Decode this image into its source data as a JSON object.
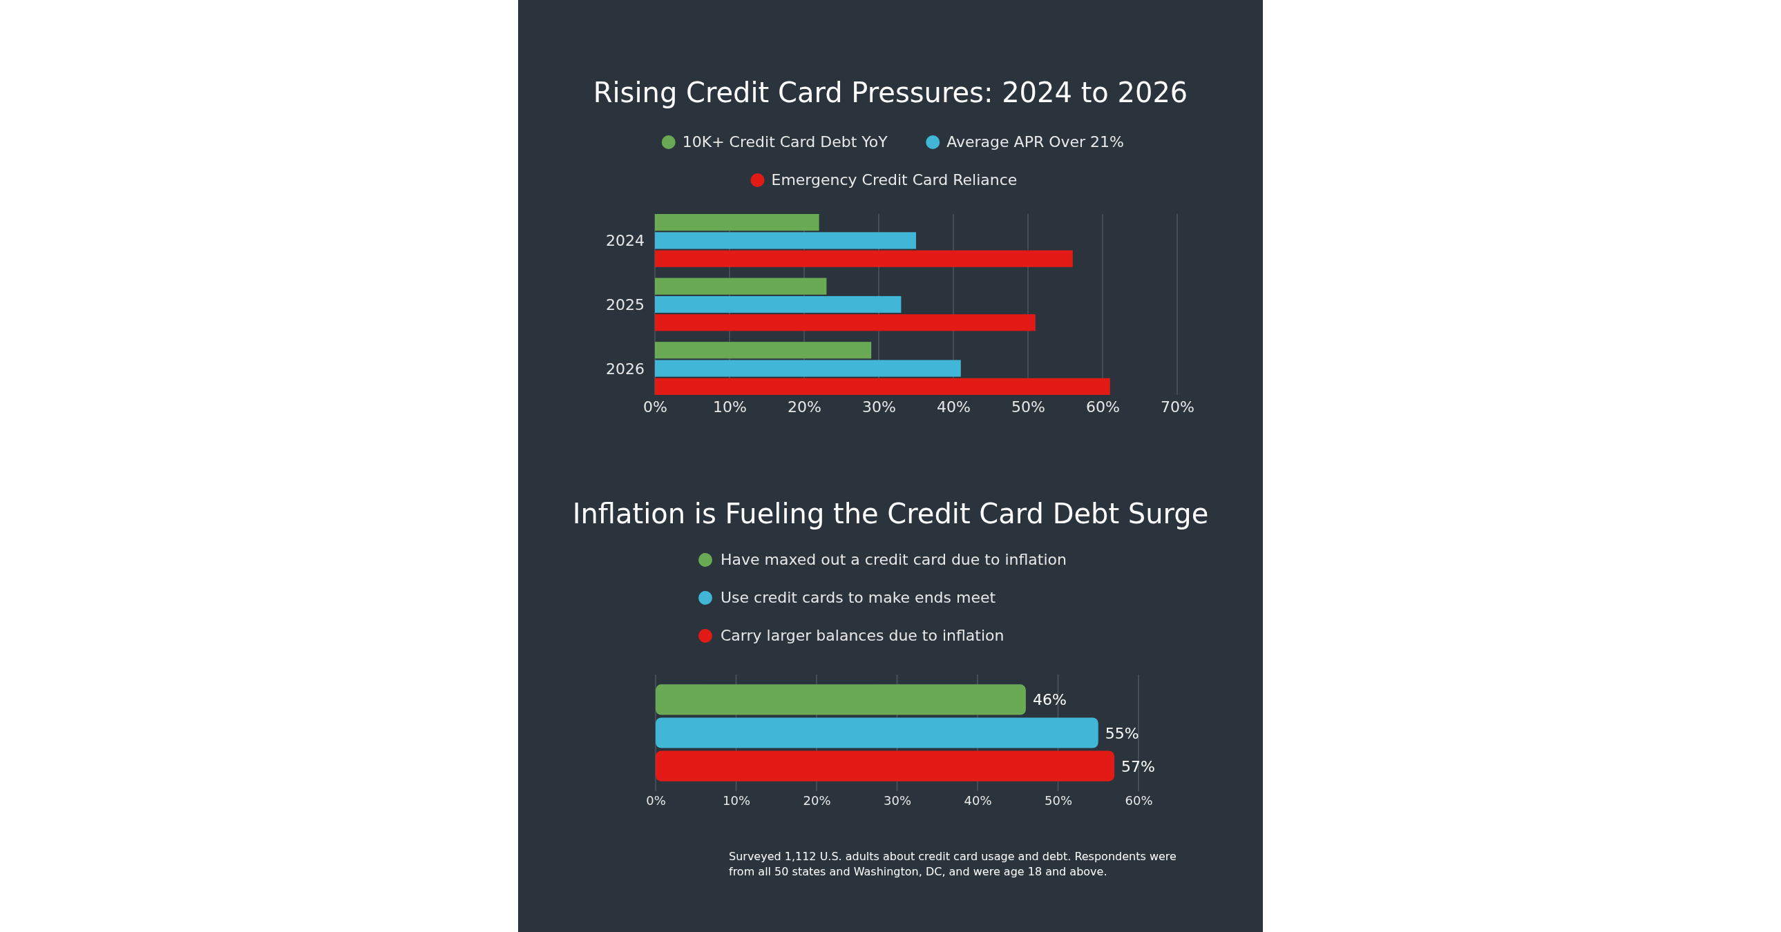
{
  "chart_data": [
    {
      "type": "bar",
      "orientation": "horizontal",
      "title": "Rising Credit Card Pressures: 2024 to 2026",
      "categories": [
        "2024",
        "2025",
        "2026"
      ],
      "series": [
        {
          "name": "10K+ Credit Card Debt YoY",
          "color": "#6aaa55",
          "values": [
            22,
            23,
            29
          ]
        },
        {
          "name": "Average APR Over 21%",
          "color": "#41b6d6",
          "values": [
            35,
            33,
            41
          ]
        },
        {
          "name": "Emergency Credit Card Reliance",
          "color": "#e31b17",
          "values": [
            56,
            51,
            61
          ]
        }
      ],
      "xlim": [
        0,
        70
      ],
      "xticks": [
        {
          "value": 0,
          "label": "0%"
        },
        {
          "value": 10,
          "label": "10%"
        },
        {
          "value": 20,
          "label": "20%"
        },
        {
          "value": 30,
          "label": "30%"
        },
        {
          "value": 40,
          "label": "40%"
        },
        {
          "value": 50,
          "label": "50%"
        },
        {
          "value": 60,
          "label": "60%"
        },
        {
          "value": 70,
          "label": "70%"
        }
      ],
      "grid": "x",
      "legend": "top"
    },
    {
      "type": "bar",
      "orientation": "horizontal",
      "title": "Inflation is Fueling the Credit Card Debt Surge",
      "categories": [
        null
      ],
      "series": [
        {
          "name": "Have maxed out a credit card due to inflation",
          "color": "#6aaa55",
          "values": [
            46
          ]
        },
        {
          "name": "Use credit cards to make ends meet",
          "color": "#41b6d6",
          "values": [
            55
          ]
        },
        {
          "name": "Carry larger balances due to inflation",
          "color": "#e31b17",
          "values": [
            57
          ]
        }
      ],
      "xlim": [
        0,
        60
      ],
      "xticks": [
        {
          "value": 0,
          "label": "0%"
        },
        {
          "value": 10,
          "label": "10%"
        },
        {
          "value": 20,
          "label": "20%"
        },
        {
          "value": 30,
          "label": "30%"
        },
        {
          "value": 40,
          "label": "40%"
        },
        {
          "value": 50,
          "label": "50%"
        },
        {
          "value": 60,
          "label": "60%"
        }
      ],
      "grid": "x",
      "legend": "top",
      "value_labels": [
        "46%",
        "55%",
        "57%"
      ],
      "annotations": [
        "Surveyed 1,112 U.S. adults about credit card usage and debt. Respondents were from all 50 states and Washington, DC, and were age 18 and above."
      ]
    }
  ]
}
